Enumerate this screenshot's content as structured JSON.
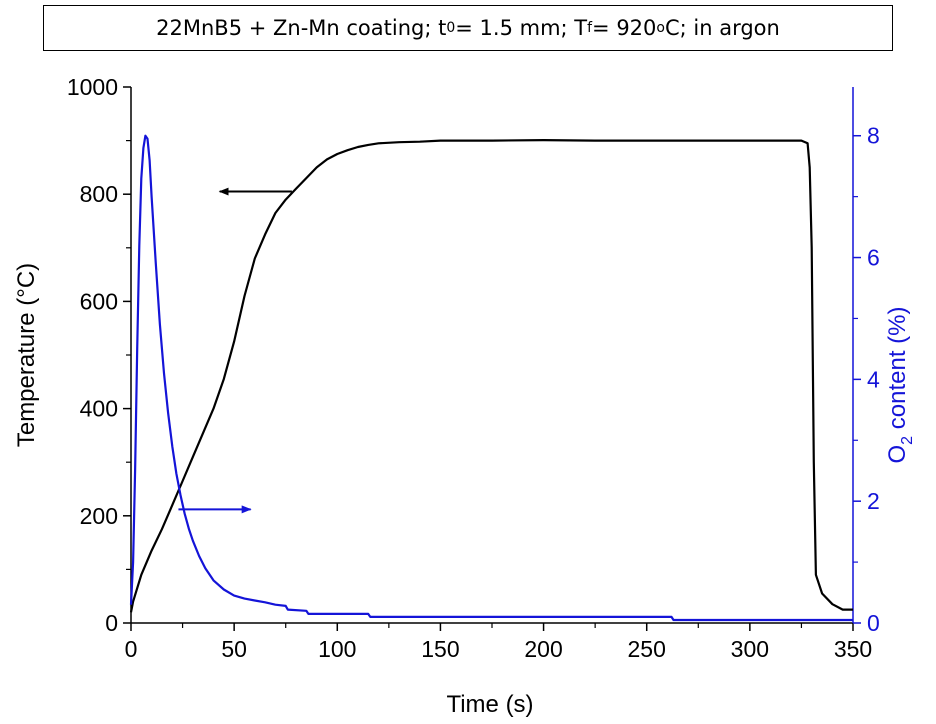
{
  "title": {
    "material": "22MnB5 + Zn-Mn coating; t",
    "thickness_sub": "0",
    "thickness_eq": " = 1.5 mm; T",
    "temp_sub": "f",
    "temp_eq": " = 920",
    "degree_sup": "o",
    "tail": "C; in argon"
  },
  "chart_data": {
    "type": "line",
    "xlabel": "Time (s)",
    "ylabel_left": "Temperature (°C)",
    "ylabel_right": {
      "prefix": "O",
      "sub": "2",
      "suffix": " content (%)"
    },
    "xlim": [
      0,
      350
    ],
    "ylim_left": [
      0,
      1000
    ],
    "ylim_right": [
      0,
      8.8
    ],
    "xticks": [
      0,
      50,
      100,
      150,
      200,
      250,
      300,
      350
    ],
    "yticks_left": [
      0,
      200,
      400,
      600,
      800,
      1000
    ],
    "yticks_right": [
      0,
      2,
      4,
      6,
      8
    ],
    "grid": false,
    "series": [
      {
        "axis": "left",
        "color": "#000000",
        "x": [
          0,
          1,
          3,
          5,
          10,
          15,
          20,
          25,
          30,
          35,
          40,
          45,
          50,
          55,
          60,
          65,
          70,
          75,
          80,
          85,
          90,
          95,
          100,
          105,
          110,
          115,
          120,
          130,
          140,
          150,
          175,
          200,
          225,
          250,
          275,
          300,
          325,
          328,
          329,
          330,
          331,
          332,
          335,
          340,
          345,
          350
        ],
        "y": [
          20,
          40,
          65,
          90,
          135,
          175,
          220,
          265,
          310,
          355,
          400,
          455,
          525,
          610,
          680,
          725,
          765,
          790,
          810,
          830,
          850,
          865,
          875,
          882,
          888,
          892,
          895,
          897,
          898,
          900,
          900,
          901,
          900,
          900,
          900,
          900,
          900,
          895,
          850,
          700,
          300,
          90,
          55,
          35,
          25,
          25
        ]
      },
      {
        "axis": "right",
        "color": "#1414d8",
        "x": [
          0,
          1,
          2,
          3,
          4,
          5,
          6,
          7,
          8,
          9,
          10,
          12,
          14,
          16,
          18,
          20,
          22,
          24,
          26,
          28,
          30,
          33,
          36,
          40,
          45,
          50,
          55,
          60,
          65,
          70,
          75,
          76,
          85,
          86,
          115,
          116,
          262,
          263,
          350
        ],
        "y": [
          0.3,
          1.0,
          2.5,
          4.5,
          6.2,
          7.3,
          7.8,
          8.0,
          7.95,
          7.6,
          7.0,
          5.9,
          4.9,
          4.1,
          3.45,
          2.9,
          2.45,
          2.1,
          1.8,
          1.55,
          1.35,
          1.1,
          0.9,
          0.7,
          0.55,
          0.45,
          0.4,
          0.37,
          0.34,
          0.3,
          0.28,
          0.22,
          0.2,
          0.15,
          0.15,
          0.1,
          0.1,
          0.05,
          0.05
        ]
      }
    ],
    "annotations": [
      {
        "type": "arrow",
        "direction": "left",
        "color": "#000000",
        "points_to": "left-axis"
      },
      {
        "type": "arrow",
        "direction": "right",
        "color": "#1414d8",
        "points_to": "right-axis"
      }
    ]
  }
}
